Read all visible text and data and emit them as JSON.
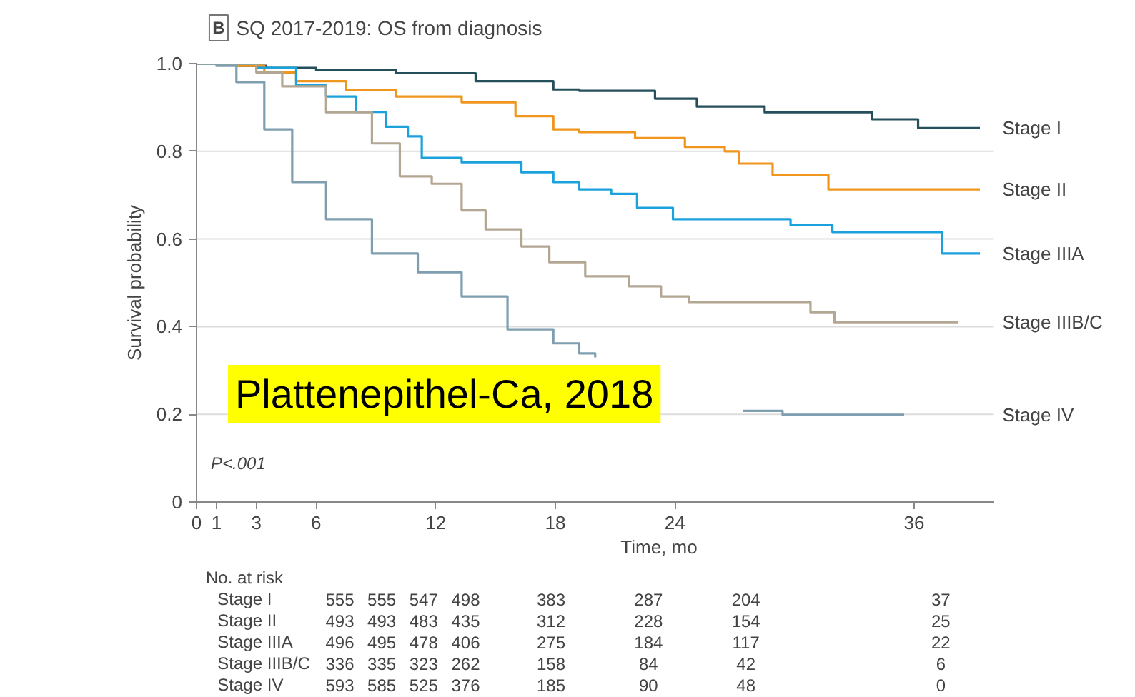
{
  "chart_data": {
    "type": "step",
    "title": "SQ 2017-2019: OS from diagnosis",
    "xlabel": "Time, mo",
    "ylabel": "Survival probability",
    "xlim": [
      0,
      40
    ],
    "xticks": [
      0,
      1,
      3,
      6,
      12,
      18,
      24,
      36
    ],
    "ylim": [
      0,
      1
    ],
    "yticks": [
      0,
      0.2,
      0.4,
      0.6,
      0.8,
      {
        "value": 1,
        "label": "1.0"
      }
    ],
    "grid": "y",
    "line_style": "solid",
    "series": [
      {
        "name": "Stage I",
        "color": "#264f5c",
        "x": [
          0,
          2,
          3.5,
          6,
          10,
          14,
          17.9,
          19.2,
          23,
          25.1,
          28.5,
          33.9,
          36.2,
          39.3
        ],
        "values": [
          1,
          0.995,
          0.99,
          0.985,
          0.978,
          0.96,
          0.941,
          0.938,
          0.92,
          0.902,
          0.889,
          0.873,
          0.853,
          0.853
        ]
      },
      {
        "name": "Stage II",
        "color": "#f0961e",
        "x": [
          0,
          2,
          3.4,
          5,
          7.5,
          10,
          13.3,
          16,
          17.9,
          19.2,
          22,
          24.5,
          26.5,
          27.2,
          28.9,
          31.7,
          39.3
        ],
        "values": [
          1,
          0.995,
          0.98,
          0.96,
          0.94,
          0.925,
          0.912,
          0.88,
          0.85,
          0.844,
          0.83,
          0.81,
          0.8,
          0.772,
          0.746,
          0.713,
          0.713
        ]
      },
      {
        "name": "Stage IIIA",
        "color": "#1ba1dc",
        "x": [
          0,
          3,
          5,
          6.5,
          8,
          9.5,
          10.6,
          11.3,
          13.3,
          16.3,
          17.9,
          19.2,
          20.8,
          22.1,
          23.9,
          29.8,
          31.9,
          37.4,
          39.3
        ],
        "values": [
          1,
          0.99,
          0.95,
          0.925,
          0.89,
          0.856,
          0.834,
          0.785,
          0.775,
          0.752,
          0.73,
          0.713,
          0.703,
          0.671,
          0.645,
          0.632,
          0.616,
          0.567,
          0.567
        ]
      },
      {
        "name": "Stage IIIB/C",
        "color": "#b3a693",
        "x": [
          0,
          3,
          4.3,
          6.5,
          8.8,
          10.2,
          11.8,
          13.3,
          14.5,
          16.3,
          17.7,
          19.5,
          21.7,
          23.3,
          24.7,
          30.8,
          32,
          38.2
        ],
        "values": [
          1,
          0.98,
          0.948,
          0.889,
          0.818,
          0.743,
          0.726,
          0.665,
          0.622,
          0.583,
          0.547,
          0.515,
          0.492,
          0.469,
          0.456,
          0.433,
          0.41,
          0.41
        ]
      },
      {
        "name": "Stage IV",
        "color": "#7f9fb0",
        "x": [
          0,
          1,
          2,
          3.4,
          4.8,
          6.5,
          8.8,
          11.1,
          13.3,
          15.6,
          17.9,
          19.2,
          20,
          22,
          27.4,
          29.4,
          35.5
        ],
        "values": [
          1,
          0.995,
          0.958,
          0.85,
          0.73,
          0.645,
          0.567,
          0.524,
          0.469,
          0.394,
          0.362,
          0.339,
          0.33,
          null,
          0.208,
          0.199,
          0.199
        ]
      }
    ],
    "annotations": [
      "B",
      "P<.001",
      "Plattenepithel-Ca, 2018",
      "No. at risk",
      "Stage I",
      "555",
      "555",
      "547",
      "498",
      "383",
      "287",
      "204",
      "37",
      "Stage II",
      "493",
      "493",
      "483",
      "435",
      "312",
      "228",
      "154",
      "25",
      "Stage IIIA",
      "496",
      "495",
      "478",
      "406",
      "275",
      "184",
      "117",
      "22",
      "Stage IIIB/C",
      "336",
      "335",
      "323",
      "262",
      "158",
      "84",
      "42",
      "6",
      "Stage IV",
      "593",
      "585",
      "525",
      "376",
      "185",
      "90",
      "48",
      "0"
    ]
  }
}
